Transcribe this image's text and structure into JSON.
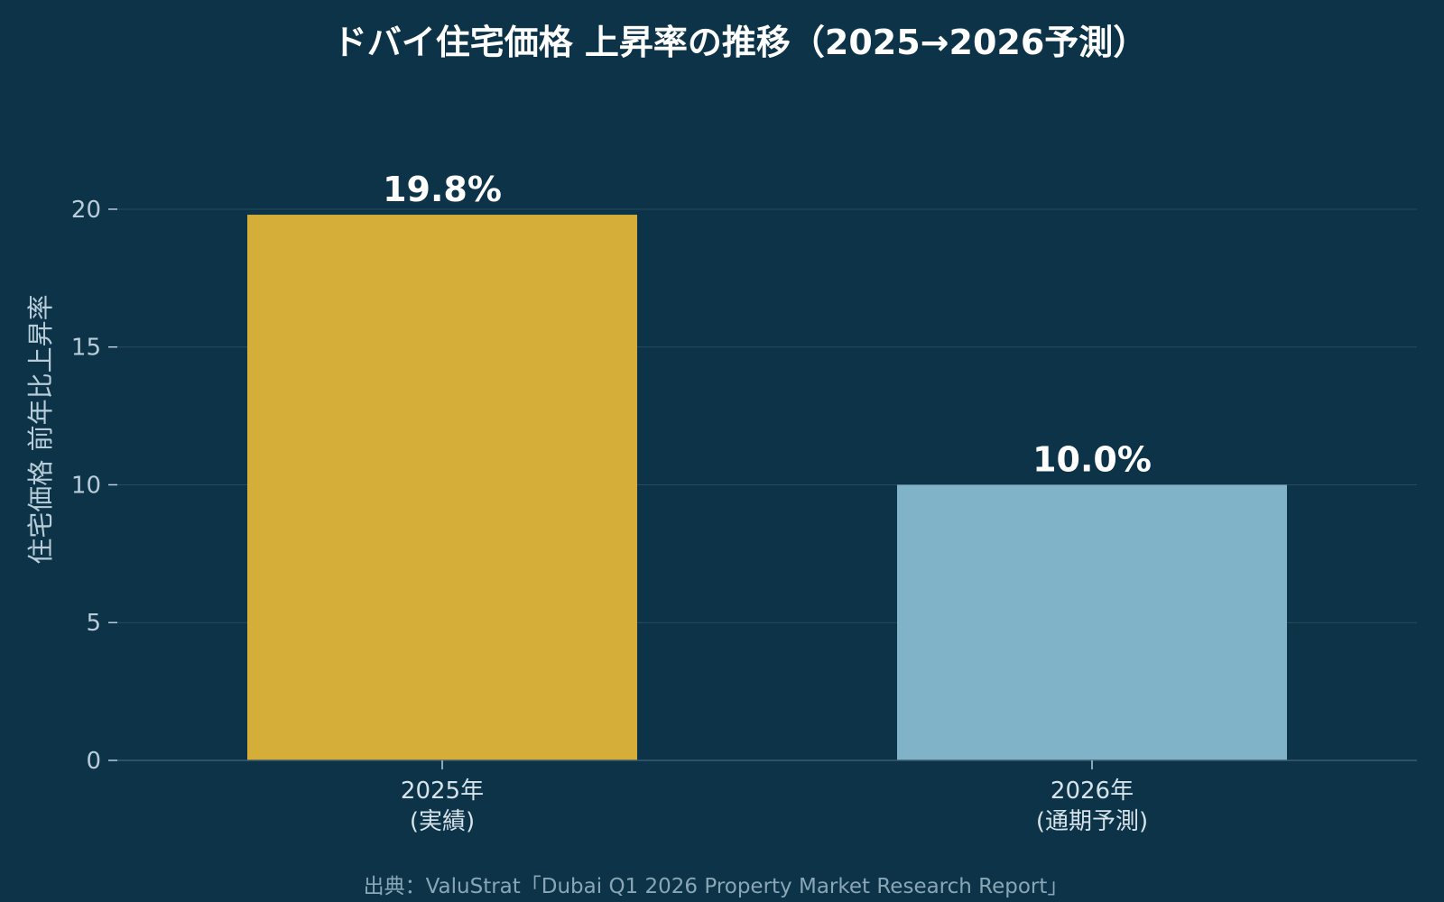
{
  "chart_data": {
    "type": "bar",
    "title": "ドバイ住宅価格 上昇率の推移（2025→2026予測）",
    "xlabel": "",
    "ylabel": "住宅価格 前年比上昇率",
    "categories": [
      {
        "line1": "2025年",
        "line2": "(実績)"
      },
      {
        "line1": "2026年",
        "line2": "(通期予測)"
      }
    ],
    "values": [
      19.8,
      10.0
    ],
    "value_labels": [
      "19.8%",
      "10.0%"
    ],
    "colors": [
      "#d4ae38",
      "#80b2c8"
    ],
    "ylim": [
      0,
      21.7
    ],
    "yticks": [
      0,
      5,
      10,
      15,
      20
    ],
    "grid": true,
    "legend": "none"
  },
  "source": "出典：ValuStrat「Dubai Q1 2026 Property Market Research Report」"
}
